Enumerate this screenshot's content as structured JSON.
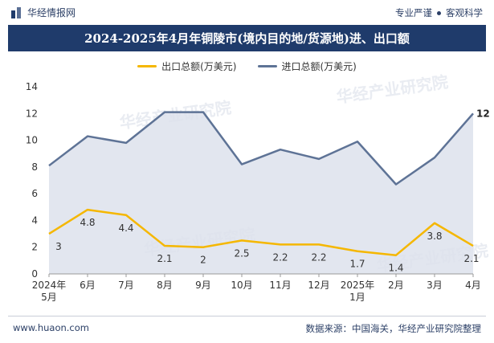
{
  "header": {
    "brand": "华经情报网",
    "slogan_left": "专业严谨",
    "slogan_right": "客观科学"
  },
  "footer": {
    "url": "www.huaon.com",
    "source": "数据来源：中国海关，华经产业研究院整理"
  },
  "watermark": "华经产业研究院",
  "colors": {
    "export": "#f5b700",
    "import": "#5e7396",
    "area": "#dde2ec",
    "title_bg": "#1f3b6b"
  },
  "chart_data": {
    "type": "line",
    "title": "2024-2025年4月年铜陵市(境内目的地/货源地)进、出口额",
    "categories": [
      "2024年5月",
      "6月",
      "7月",
      "8月",
      "9月",
      "10月",
      "11月",
      "12月",
      "2025年1月",
      "2月",
      "3月",
      "4月"
    ],
    "series": [
      {
        "name": "出口总额(万美元)",
        "values": [
          3,
          4.8,
          4.4,
          2.1,
          2,
          2.5,
          2.2,
          2.2,
          1.7,
          1.4,
          3.8,
          2.1
        ],
        "value_labels": [
          "3",
          "4.8",
          "4.4",
          "2.1",
          "2",
          "2.5",
          "2.2",
          "2.2",
          "1.7",
          "1.4",
          "3.8",
          "2.1"
        ]
      },
      {
        "name": "进口总额(万美元)",
        "values": [
          8.1,
          10.3,
          9.8,
          12.1,
          12.1,
          8.2,
          9.3,
          8.6,
          9.9,
          6.7,
          8.7,
          12
        ],
        "last_label": "12"
      }
    ],
    "ylim": [
      0,
      14
    ],
    "yticks": [
      "0",
      "2",
      "4",
      "6",
      "8",
      "10",
      "12",
      "14"
    ],
    "grid": false,
    "legend": "top-center"
  }
}
